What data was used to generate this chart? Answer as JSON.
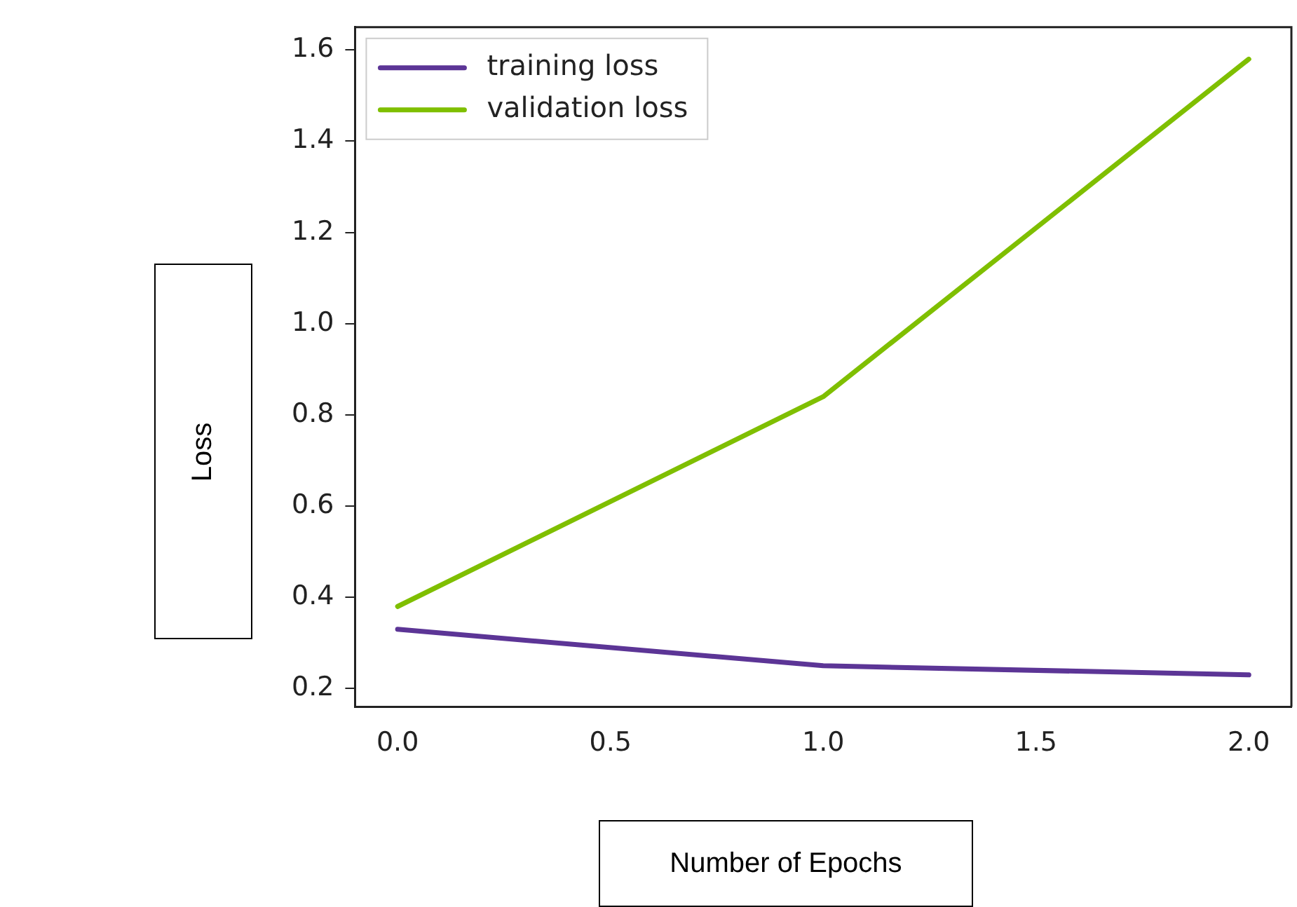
{
  "chart_data": {
    "type": "line",
    "xlabel": "Number of Epochs",
    "ylabel": "Loss",
    "x": [
      0,
      1,
      2
    ],
    "series": [
      {
        "name": "training loss",
        "color": "#5c3596",
        "values": [
          0.33,
          0.25,
          0.23
        ]
      },
      {
        "name": "validation loss",
        "color": "#7fbf00",
        "values": [
          0.38,
          0.84,
          1.58
        ]
      }
    ],
    "xlim": [
      -0.1,
      2.1
    ],
    "xticks": [
      {
        "value": 0,
        "label": "0.0"
      },
      0.5,
      {
        "value": 1,
        "label": "1.0"
      },
      1.5,
      {
        "value": 2,
        "label": "2.0"
      }
    ],
    "ylim": [
      0.16,
      1.65
    ],
    "yticks": [
      0.2,
      0.4,
      0.6,
      0.8,
      {
        "value": 1,
        "label": "1.0"
      },
      1.2,
      1.4,
      1.6
    ],
    "legend": "top left",
    "grid": false,
    "marker": "none",
    "line_style": "solid"
  }
}
